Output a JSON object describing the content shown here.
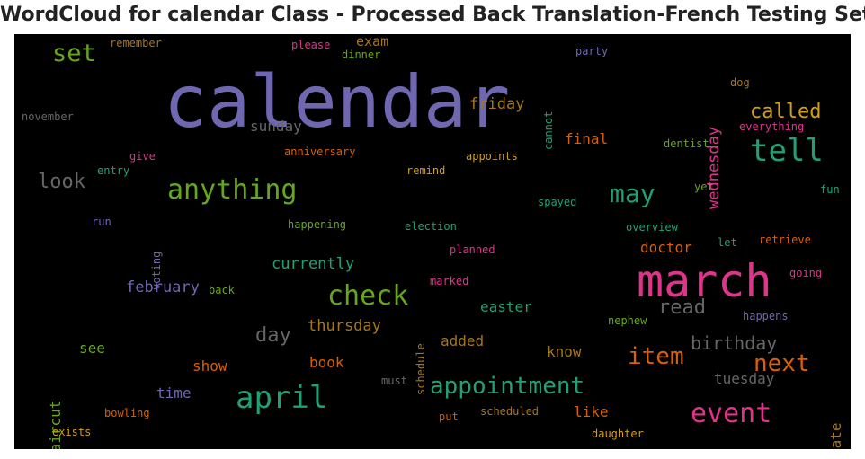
{
  "title": "WordCloud for calendar Class - Processed Back Translation-French Testing Set",
  "colors": {
    "purple": "#6f68b1",
    "green": "#21a078",
    "pink": "#e0338a",
    "orange": "#d95f02",
    "gold": "#d39e14",
    "olive": "#66a61e",
    "brown": "#a6761d",
    "gray": "#666666"
  },
  "words": [
    {
      "text": "calendar",
      "color": "#6f68b1",
      "weight": 80
    },
    {
      "text": "march",
      "color": "#e0338a",
      "weight": 50
    },
    {
      "text": "tell",
      "color": "#21a078",
      "weight": 34
    },
    {
      "text": "april",
      "color": "#21a078",
      "weight": 34
    },
    {
      "text": "anything",
      "color": "#66a61e",
      "weight": 30
    },
    {
      "text": "check",
      "color": "#66a61e",
      "weight": 30
    },
    {
      "text": "event",
      "color": "#e0338a",
      "weight": 30
    },
    {
      "text": "may",
      "color": "#21a078",
      "weight": 28
    },
    {
      "text": "set",
      "color": "#66a61e",
      "weight": 27
    },
    {
      "text": "appointment",
      "color": "#21a078",
      "weight": 26
    },
    {
      "text": "item",
      "color": "#d95f02",
      "weight": 26
    },
    {
      "text": "next",
      "color": "#d95f02",
      "weight": 26
    },
    {
      "text": "called",
      "color": "#d39e14",
      "weight": 22
    },
    {
      "text": "look",
      "color": "#666666",
      "weight": 22
    },
    {
      "text": "day",
      "color": "#666666",
      "weight": 22
    },
    {
      "text": "read",
      "color": "#666666",
      "weight": 22
    },
    {
      "text": "birthday",
      "color": "#666666",
      "weight": 20
    },
    {
      "text": "thursday",
      "color": "#a6761d",
      "weight": 17
    },
    {
      "text": "friday",
      "color": "#a6761d",
      "weight": 17
    },
    {
      "text": "currently",
      "color": "#21a078",
      "weight": 17
    },
    {
      "text": "february",
      "color": "#6f68b1",
      "weight": 17
    },
    {
      "text": "wednesday",
      "color": "#e0338a",
      "weight": 17
    },
    {
      "text": "sunday",
      "color": "#666666",
      "weight": 16
    },
    {
      "text": "final",
      "color": "#d95f02",
      "weight": 16
    },
    {
      "text": "doctor",
      "color": "#d95f02",
      "weight": 16
    },
    {
      "text": "easter",
      "color": "#21a078",
      "weight": 16
    },
    {
      "text": "tuesday",
      "color": "#666666",
      "weight": 16
    },
    {
      "text": "time",
      "color": "#6f68b1",
      "weight": 16
    },
    {
      "text": "show",
      "color": "#d95f02",
      "weight": 16
    },
    {
      "text": "book",
      "color": "#d95f02",
      "weight": 16
    },
    {
      "text": "added",
      "color": "#a6761d",
      "weight": 16
    },
    {
      "text": "know",
      "color": "#a6761d",
      "weight": 16
    },
    {
      "text": "like",
      "color": "#d95f02",
      "weight": 16
    },
    {
      "text": "see",
      "color": "#66a61e",
      "weight": 16
    },
    {
      "text": "haircut",
      "color": "#66a61e",
      "weight": 16
    },
    {
      "text": "date",
      "color": "#a6761d",
      "weight": 16
    },
    {
      "text": "exam",
      "color": "#a6761d",
      "weight": 15
    },
    {
      "text": "remember",
      "color": "#a6761d",
      "weight": 12
    },
    {
      "text": "please",
      "color": "#e0338a",
      "weight": 12
    },
    {
      "text": "dinner",
      "color": "#66a61e",
      "weight": 12
    },
    {
      "text": "party",
      "color": "#6f68b1",
      "weight": 12
    },
    {
      "text": "cannot",
      "color": "#21a078",
      "weight": 12
    },
    {
      "text": "dog",
      "color": "#a6761d",
      "weight": 12
    },
    {
      "text": "november",
      "color": "#666666",
      "weight": 12
    },
    {
      "text": "everything",
      "color": "#e0338a",
      "weight": 12
    },
    {
      "text": "dentist",
      "color": "#66a61e",
      "weight": 12
    },
    {
      "text": "give",
      "color": "#e0338a",
      "weight": 12
    },
    {
      "text": "anniversary",
      "color": "#d95f02",
      "weight": 12
    },
    {
      "text": "appoints",
      "color": "#d39e14",
      "weight": 12
    },
    {
      "text": "entry",
      "color": "#21a078",
      "weight": 12
    },
    {
      "text": "remind",
      "color": "#d39e14",
      "weight": 12
    },
    {
      "text": "yet",
      "color": "#66a61e",
      "weight": 12
    },
    {
      "text": "fun",
      "color": "#21a078",
      "weight": 12
    },
    {
      "text": "spayed",
      "color": "#21a078",
      "weight": 12
    },
    {
      "text": "run",
      "color": "#6f68b1",
      "weight": 12
    },
    {
      "text": "voting",
      "color": "#6f68b1",
      "weight": 12
    },
    {
      "text": "happening",
      "color": "#66a61e",
      "weight": 12
    },
    {
      "text": "election",
      "color": "#21a078",
      "weight": 12
    },
    {
      "text": "overview",
      "color": "#21a078",
      "weight": 12
    },
    {
      "text": "planned",
      "color": "#e0338a",
      "weight": 12
    },
    {
      "text": "let",
      "color": "#21a078",
      "weight": 12
    },
    {
      "text": "retrieve",
      "color": "#d95f02",
      "weight": 12
    },
    {
      "text": "going",
      "color": "#e0338a",
      "weight": 12
    },
    {
      "text": "back",
      "color": "#66a61e",
      "weight": 12
    },
    {
      "text": "marked",
      "color": "#e0338a",
      "weight": 12
    },
    {
      "text": "schedule",
      "color": "#a6761d",
      "weight": 12
    },
    {
      "text": "happens",
      "color": "#6f68b1",
      "weight": 12
    },
    {
      "text": "nephew",
      "color": "#66a61e",
      "weight": 12
    },
    {
      "text": "must",
      "color": "#666666",
      "weight": 12
    },
    {
      "text": "bowling",
      "color": "#d95f02",
      "weight": 12
    },
    {
      "text": "put",
      "color": "#d95f02",
      "weight": 12
    },
    {
      "text": "scheduled",
      "color": "#a6761d",
      "weight": 12
    },
    {
      "text": "exists",
      "color": "#d39e14",
      "weight": 12
    },
    {
      "text": "daughter",
      "color": "#d39e14",
      "weight": 12
    }
  ]
}
